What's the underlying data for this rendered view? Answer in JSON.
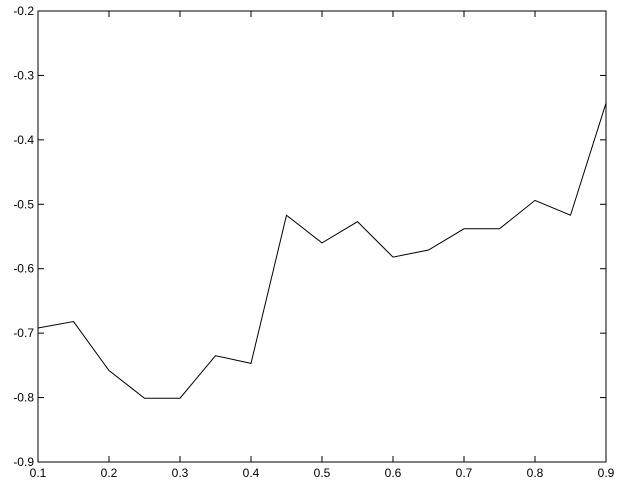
{
  "chart_data": {
    "type": "line",
    "title": "",
    "xlabel": "",
    "ylabel": "",
    "xlim": [
      0.1,
      0.9
    ],
    "ylim": [
      -0.9,
      -0.2
    ],
    "grid": false,
    "legend": "none",
    "x_ticks": [
      0.1,
      0.2,
      0.3,
      0.4,
      0.5,
      0.6,
      0.7,
      0.8,
      0.9
    ],
    "x_tick_labels": [
      "0.1",
      "0.2",
      "0.3",
      "0.4",
      "0.5",
      "0.6",
      "0.7",
      "0.8",
      "0.9"
    ],
    "y_ticks": [
      -0.2,
      -0.3,
      -0.4,
      -0.5,
      -0.6,
      -0.7,
      -0.8,
      -0.9
    ],
    "y_tick_labels": [
      "-0.2",
      "-0.3",
      "-0.4",
      "-0.5",
      "-0.6",
      "-0.7",
      "-0.8",
      "-0.9"
    ],
    "series": [
      {
        "color": "#000000",
        "x": [
          0.1,
          0.15,
          0.2,
          0.25,
          0.3,
          0.35,
          0.4,
          0.45,
          0.5,
          0.55,
          0.6,
          0.65,
          0.7,
          0.75,
          0.8,
          0.85,
          0.9
        ],
        "y": [
          -0.692,
          -0.682,
          -0.758,
          -0.801,
          -0.801,
          -0.735,
          -0.747,
          -0.517,
          -0.56,
          -0.527,
          -0.582,
          -0.571,
          -0.538,
          -0.538,
          -0.494,
          -0.517,
          -0.343
        ]
      }
    ]
  }
}
